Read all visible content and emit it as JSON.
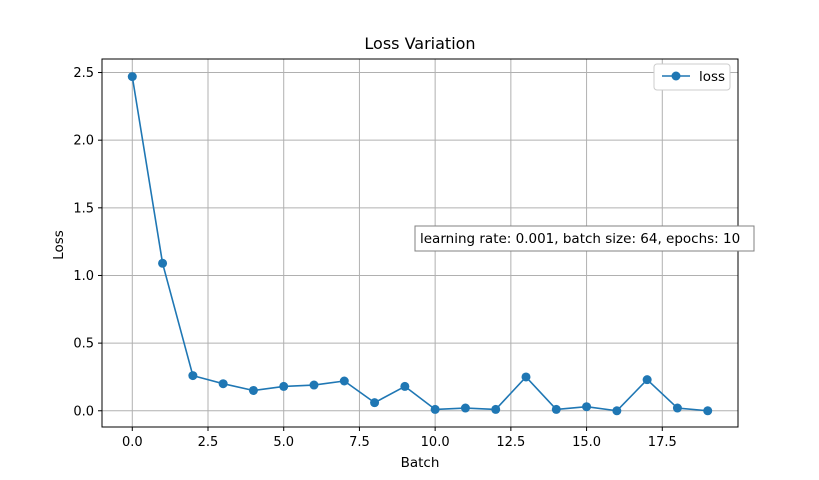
{
  "chart_data": {
    "type": "line",
    "title": "Loss Variation",
    "xlabel": "Batch",
    "ylabel": "Loss",
    "xlim": [
      -1.0,
      20.0
    ],
    "ylim": [
      -0.12,
      2.6
    ],
    "xticks": [
      0.0,
      2.5,
      5.0,
      7.5,
      10.0,
      12.5,
      15.0,
      17.5
    ],
    "xtick_labels": [
      "0.0",
      "2.5",
      "5.0",
      "7.5",
      "10.0",
      "12.5",
      "15.0",
      "17.5"
    ],
    "yticks": [
      0.0,
      0.5,
      1.0,
      1.5,
      2.0,
      2.5
    ],
    "ytick_labels": [
      "0.0",
      "0.5",
      "1.0",
      "1.5",
      "2.0",
      "2.5"
    ],
    "grid": true,
    "legend_position": "top-right",
    "series": [
      {
        "name": "loss",
        "color": "#1f77b4",
        "marker": "circle",
        "x": [
          0,
          1,
          2,
          3,
          4,
          5,
          6,
          7,
          8,
          9,
          10,
          11,
          12,
          13,
          14,
          15,
          16,
          17,
          18,
          19
        ],
        "y": [
          2.47,
          1.09,
          0.26,
          0.2,
          0.15,
          0.18,
          0.19,
          0.22,
          0.06,
          0.18,
          0.01,
          0.02,
          0.01,
          0.25,
          0.01,
          0.03,
          0.0,
          0.23,
          0.02,
          0.0
        ]
      }
    ],
    "annotation": "learning rate: 0.001, batch size: 64, epochs: 10"
  }
}
